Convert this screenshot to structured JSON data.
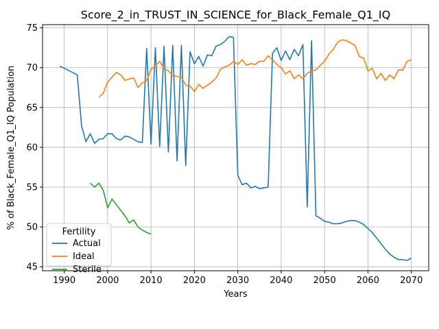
{
  "chart_data": {
    "type": "line",
    "title": "Score_2_in_TRUST_IN_SCIENCE_for_Black_Female_Q1_IQ",
    "xlabel": "Years",
    "ylabel": "% of Black_Female_Q1_IQ Population",
    "xlim": [
      1985,
      2074
    ],
    "ylim": [
      44.5,
      75.4
    ],
    "xticks": [
      1990,
      2000,
      2010,
      2020,
      2030,
      2040,
      2050,
      2060,
      2070
    ],
    "yticks": [
      45,
      50,
      55,
      60,
      65,
      70,
      75
    ],
    "grid": true,
    "legend": {
      "title": "Fertility",
      "placement": "lower-left"
    },
    "series": [
      {
        "name": "Actual",
        "color": "#1f77b4",
        "points": [
          [
            1989,
            70.2
          ],
          [
            1993,
            69.1
          ],
          [
            1994,
            62.7
          ],
          [
            1995,
            60.7
          ],
          [
            1996,
            61.7
          ],
          [
            1997,
            60.5
          ],
          [
            1998,
            61.0
          ],
          [
            1999,
            61.1
          ],
          [
            2000,
            61.7
          ],
          [
            2001,
            61.7
          ],
          [
            2002,
            61.1
          ],
          [
            2003,
            60.9
          ],
          [
            2004,
            61.4
          ],
          [
            2005,
            61.3
          ],
          [
            2006,
            61.0
          ],
          [
            2007,
            60.7
          ],
          [
            2008,
            60.6
          ],
          [
            2009,
            72.4
          ],
          [
            2010,
            60.4
          ],
          [
            2011,
            72.5
          ],
          [
            2012,
            60.1
          ],
          [
            2013,
            72.7
          ],
          [
            2014,
            59.4
          ],
          [
            2015,
            72.8
          ],
          [
            2016,
            58.3
          ],
          [
            2017,
            72.8
          ],
          [
            2018,
            57.7
          ],
          [
            2019,
            72.0
          ],
          [
            2020,
            70.5
          ],
          [
            2021,
            71.4
          ],
          [
            2022,
            70.2
          ],
          [
            2023,
            71.6
          ],
          [
            2024,
            71.5
          ],
          [
            2025,
            72.7
          ],
          [
            2026,
            72.9
          ],
          [
            2027,
            73.3
          ],
          [
            2028,
            73.9
          ],
          [
            2029,
            73.8
          ],
          [
            2030,
            56.5
          ],
          [
            2031,
            55.3
          ],
          [
            2032,
            55.5
          ],
          [
            2033,
            54.9
          ],
          [
            2034,
            55.1
          ],
          [
            2035,
            54.8
          ],
          [
            2036,
            54.9
          ],
          [
            2037,
            55.0
          ],
          [
            2038,
            71.8
          ],
          [
            2039,
            72.5
          ],
          [
            2040,
            70.9
          ],
          [
            2041,
            72.1
          ],
          [
            2042,
            71.0
          ],
          [
            2043,
            72.3
          ],
          [
            2044,
            71.5
          ],
          [
            2045,
            72.9
          ],
          [
            2046,
            52.5
          ],
          [
            2047,
            73.4
          ],
          [
            2048,
            51.4
          ],
          [
            2049,
            51.1
          ],
          [
            2050,
            50.7
          ],
          [
            2051,
            50.6
          ],
          [
            2052,
            50.4
          ],
          [
            2053,
            50.4
          ],
          [
            2054,
            50.5
          ],
          [
            2055,
            50.7
          ],
          [
            2056,
            50.8
          ],
          [
            2057,
            50.8
          ],
          [
            2058,
            50.6
          ],
          [
            2059,
            50.3
          ],
          [
            2060,
            49.8
          ],
          [
            2061,
            49.3
          ],
          [
            2062,
            48.6
          ],
          [
            2063,
            47.9
          ],
          [
            2064,
            47.2
          ],
          [
            2065,
            46.6
          ],
          [
            2066,
            46.2
          ],
          [
            2067,
            45.9
          ],
          [
            2068,
            45.9
          ],
          [
            2069,
            45.8
          ],
          [
            2070,
            46.1
          ]
        ]
      },
      {
        "name": "Ideal",
        "color": "#ff7f0e",
        "points": [
          [
            1998,
            66.3
          ],
          [
            1999,
            66.8
          ],
          [
            2000,
            68.2
          ],
          [
            2001,
            68.8
          ],
          [
            2002,
            69.4
          ],
          [
            2003,
            69.1
          ],
          [
            2004,
            68.4
          ],
          [
            2005,
            68.6
          ],
          [
            2006,
            68.7
          ],
          [
            2007,
            67.5
          ],
          [
            2008,
            68.1
          ],
          [
            2009,
            68.4
          ],
          [
            2010,
            69.8
          ],
          [
            2011,
            70.2
          ],
          [
            2012,
            70.8
          ],
          [
            2013,
            69.9
          ],
          [
            2014,
            69.6
          ],
          [
            2015,
            69.0
          ],
          [
            2016,
            68.9
          ],
          [
            2017,
            68.8
          ],
          [
            2018,
            67.8
          ],
          [
            2019,
            67.7
          ],
          [
            2020,
            67.0
          ],
          [
            2021,
            67.9
          ],
          [
            2022,
            67.4
          ],
          [
            2023,
            67.8
          ],
          [
            2024,
            68.2
          ],
          [
            2025,
            68.7
          ],
          [
            2026,
            69.8
          ],
          [
            2027,
            70.1
          ],
          [
            2028,
            70.3
          ],
          [
            2029,
            70.8
          ],
          [
            2030,
            70.4
          ],
          [
            2031,
            71.0
          ],
          [
            2032,
            70.3
          ],
          [
            2033,
            70.5
          ],
          [
            2034,
            70.4
          ],
          [
            2035,
            70.8
          ],
          [
            2036,
            70.8
          ],
          [
            2037,
            71.5
          ],
          [
            2038,
            71.0
          ],
          [
            2039,
            70.4
          ],
          [
            2040,
            70.0
          ],
          [
            2041,
            69.2
          ],
          [
            2042,
            69.6
          ],
          [
            2043,
            68.6
          ],
          [
            2044,
            69.1
          ],
          [
            2045,
            68.6
          ],
          [
            2046,
            69.3
          ],
          [
            2047,
            69.6
          ],
          [
            2048,
            69.7
          ],
          [
            2049,
            70.3
          ],
          [
            2050,
            70.8
          ],
          [
            2051,
            71.7
          ],
          [
            2052,
            72.3
          ],
          [
            2053,
            73.2
          ],
          [
            2054,
            73.5
          ],
          [
            2055,
            73.4
          ],
          [
            2056,
            73.1
          ],
          [
            2057,
            72.8
          ],
          [
            2058,
            71.4
          ],
          [
            2059,
            71.2
          ],
          [
            2060,
            69.6
          ],
          [
            2061,
            69.9
          ],
          [
            2062,
            68.6
          ],
          [
            2063,
            69.3
          ],
          [
            2064,
            68.4
          ],
          [
            2065,
            69.1
          ],
          [
            2066,
            68.6
          ],
          [
            2067,
            69.7
          ],
          [
            2068,
            69.7
          ],
          [
            2069,
            70.8
          ],
          [
            2070,
            71.0
          ]
        ]
      },
      {
        "name": "Sterile",
        "color": "#2ca02c",
        "points": [
          [
            1996,
            55.5
          ],
          [
            1997,
            55.0
          ],
          [
            1998,
            55.5
          ],
          [
            1999,
            54.6
          ],
          [
            2000,
            52.4
          ],
          [
            2001,
            53.5
          ],
          [
            2002,
            52.8
          ],
          [
            2003,
            52.1
          ],
          [
            2004,
            51.4
          ],
          [
            2005,
            50.5
          ],
          [
            2006,
            50.9
          ],
          [
            2007,
            50.0
          ],
          [
            2008,
            49.6
          ],
          [
            2009,
            49.3
          ],
          [
            2010,
            49.1
          ]
        ]
      }
    ]
  }
}
